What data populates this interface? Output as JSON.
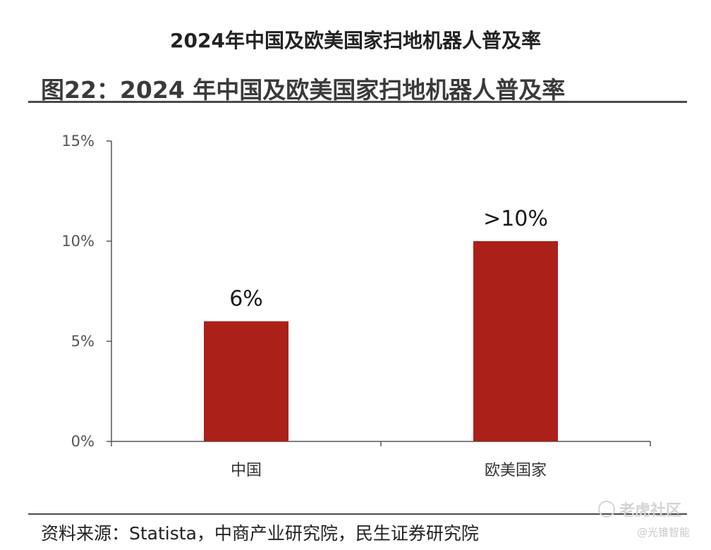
{
  "header": {
    "top_title": "2024年中国及欧美国家扫地机器人普及率",
    "figure_title": "图22：2024 年中国及欧美国家扫地机器人普及率"
  },
  "footer": {
    "source": "资料来源：Statista，中商产业研究院，民生证券研究院"
  },
  "watermark": {
    "community": "老虎社区",
    "author": "@光锥智能"
  },
  "colors": {
    "bar": "#ab2119",
    "axis": "#555555"
  },
  "chart_data": {
    "type": "bar",
    "categories": [
      "中国",
      "欧美国家"
    ],
    "values": [
      6,
      10
    ],
    "data_labels": [
      "6%",
      ">10%"
    ],
    "yticks": [
      "0%",
      "5%",
      "10%",
      "15%"
    ],
    "ytick_values": [
      0,
      5,
      10,
      15
    ],
    "ylim": [
      0,
      15
    ],
    "grid": false,
    "legend": "none"
  }
}
